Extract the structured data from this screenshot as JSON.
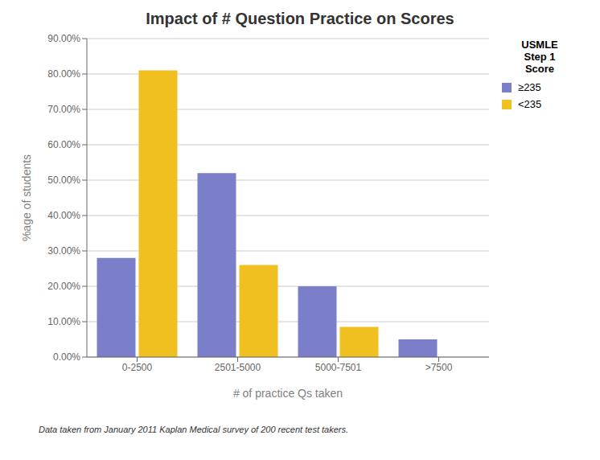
{
  "chart_data": {
    "type": "bar",
    "title": "Impact of # Question Practice on Scores",
    "categories": [
      "0-2500",
      "2501-5000",
      "5000-7501",
      ">7500"
    ],
    "series": [
      {
        "name": "≥235",
        "color": "#7b7ec8",
        "values": [
          0.28,
          0.52,
          0.2,
          0.05
        ]
      },
      {
        "name": "<235",
        "color": "#f0c020",
        "values": [
          0.81,
          0.26,
          0.085,
          0.0
        ]
      }
    ],
    "xlabel": "# of practice Qs taken",
    "ylabel": "%age of students",
    "ylim": [
      0,
      0.9
    ],
    "yticks": [
      {
        "value": 0.0,
        "label": "0.00%"
      },
      {
        "value": 0.1,
        "label": "10.00%"
      },
      {
        "value": 0.2,
        "label": "20.00%"
      },
      {
        "value": 0.3,
        "label": "30.00%"
      },
      {
        "value": 0.4,
        "label": "40.00%"
      },
      {
        "value": 0.5,
        "label": "50.00%"
      },
      {
        "value": 0.6,
        "label": "60.00%"
      },
      {
        "value": 0.7,
        "label": "70.00%"
      },
      {
        "value": 0.8,
        "label": "80.00%"
      },
      {
        "value": 0.9,
        "label": "90.00%"
      }
    ],
    "legend_title": "USMLE\nStep 1\nScore",
    "footnote": "Data taken from January 2011 Kaplan Medical survey of 200 recent test takers.",
    "grid": true,
    "legend": "upper right"
  }
}
